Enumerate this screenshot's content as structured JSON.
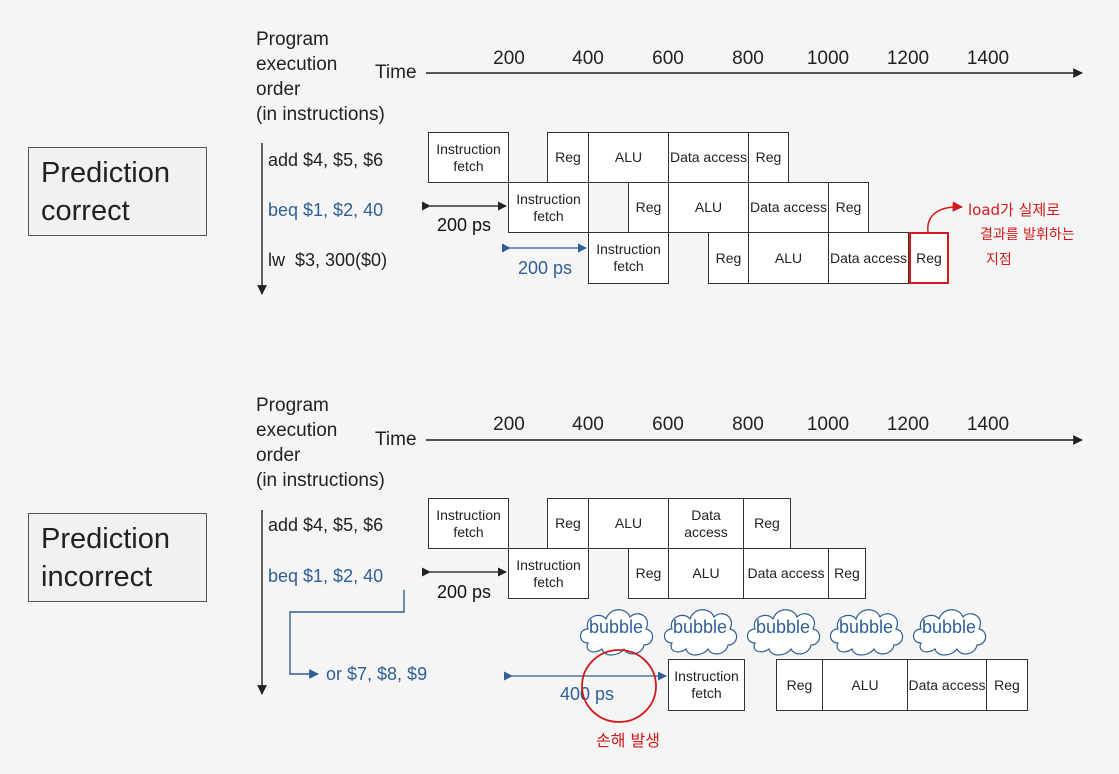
{
  "top": {
    "label_box": [
      "Prediction",
      "correct"
    ],
    "header": [
      "Program",
      "execution",
      "order",
      "(in instructions)"
    ],
    "time_label": "Time",
    "ticks": [
      "200",
      "400",
      "600",
      "800",
      "1000",
      "1200",
      "1400"
    ],
    "instructions": [
      "add $4, $5, $6",
      "beq $1, $2, 40",
      "lw  $3, 300($0)"
    ],
    "stages": {
      "if": "Instruction fetch",
      "reg": "Reg",
      "alu": "ALU",
      "dm": "Data access"
    },
    "ps_black": "200 ps",
    "ps_blue": "200 ps",
    "annotation": [
      "load가 실제로",
      "결과를 발휘하는",
      "지점"
    ]
  },
  "bottom": {
    "label_box": [
      "Prediction",
      "incorrect"
    ],
    "header": [
      "Program",
      "execution",
      "order",
      "(in instructions)"
    ],
    "time_label": "Time",
    "ticks": [
      "200",
      "400",
      "600",
      "800",
      "1000",
      "1200",
      "1400"
    ],
    "instructions": [
      "add $4, $5, $6",
      "beq $1, $2, 40",
      "or $7, $8, $9"
    ],
    "stages": {
      "if": "Instruction fetch",
      "reg": "Reg",
      "alu": "ALU",
      "dm": "Data access"
    },
    "bubble": "bubble",
    "ps_black": "200 ps",
    "ps_blue": "400 ps",
    "annotation": "손해 발생"
  },
  "colors": {
    "blue": "#2f5f96",
    "red": "#d11a1a"
  }
}
